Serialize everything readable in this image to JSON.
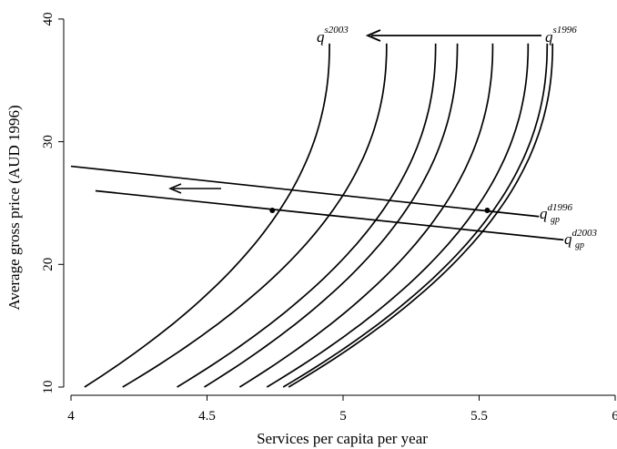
{
  "chart_data": {
    "type": "line",
    "xlabel": "Services per capita per year",
    "ylabel": "Average gross price (AUD 1996)",
    "xlim": [
      4,
      6
    ],
    "ylim": [
      10,
      40
    ],
    "x_ticks": [
      "4",
      "4.5",
      "5",
      "5.5",
      "6"
    ],
    "y_ticks": [
      "10",
      "20",
      "30",
      "40"
    ],
    "grid": false,
    "supply_curves": [
      {
        "x_bottom": 4.05,
        "x_top": 4.95
      },
      {
        "x_bottom": 4.19,
        "x_top": 5.16
      },
      {
        "x_bottom": 4.39,
        "x_top": 5.34
      },
      {
        "x_bottom": 4.49,
        "x_top": 5.42
      },
      {
        "x_bottom": 4.62,
        "x_top": 5.55
      },
      {
        "x_bottom": 4.72,
        "x_top": 5.68
      },
      {
        "x_bottom": 4.78,
        "x_top": 5.75
      },
      {
        "x_bottom": 4.8,
        "x_top": 5.77
      }
    ],
    "demand_curves": [
      {
        "points": [
          [
            4.0,
            28.0
          ],
          [
            5.72,
            23.9
          ]
        ]
      },
      {
        "points": [
          [
            4.09,
            26.0
          ],
          [
            5.81,
            22.0
          ]
        ]
      }
    ],
    "equilibria": [
      [
        4.74,
        24.4
      ],
      [
        5.53,
        24.4
      ]
    ],
    "labels": {
      "supply_2003": {
        "base": "q",
        "sup": "s2003"
      },
      "supply_1996": {
        "base": "q",
        "sup": "s1996"
      },
      "demand_1996": {
        "base": "q",
        "sub": "gp",
        "sup": "d1996"
      },
      "demand_2003": {
        "base": "q",
        "sub": "gp",
        "sup": "d2003"
      }
    }
  }
}
